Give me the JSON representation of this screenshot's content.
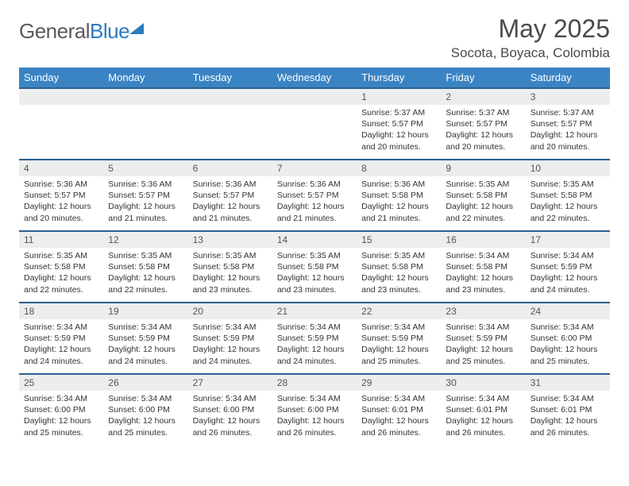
{
  "brand": {
    "part1": "General",
    "part2": "Blue"
  },
  "title": "May 2025",
  "location": "Socota, Boyaca, Colombia",
  "colors": {
    "header_bg": "#3b84c4",
    "border": "#2d5f8e",
    "daynum_bg": "#eceded",
    "brand_blue": "#2b7bbf"
  },
  "weekdays": [
    "Sunday",
    "Monday",
    "Tuesday",
    "Wednesday",
    "Thursday",
    "Friday",
    "Saturday"
  ],
  "weeks": [
    [
      null,
      null,
      null,
      null,
      {
        "n": "1",
        "sr": "5:37 AM",
        "ss": "5:57 PM",
        "dl": "12 hours and 20 minutes."
      },
      {
        "n": "2",
        "sr": "5:37 AM",
        "ss": "5:57 PM",
        "dl": "12 hours and 20 minutes."
      },
      {
        "n": "3",
        "sr": "5:37 AM",
        "ss": "5:57 PM",
        "dl": "12 hours and 20 minutes."
      }
    ],
    [
      {
        "n": "4",
        "sr": "5:36 AM",
        "ss": "5:57 PM",
        "dl": "12 hours and 20 minutes."
      },
      {
        "n": "5",
        "sr": "5:36 AM",
        "ss": "5:57 PM",
        "dl": "12 hours and 21 minutes."
      },
      {
        "n": "6",
        "sr": "5:36 AM",
        "ss": "5:57 PM",
        "dl": "12 hours and 21 minutes."
      },
      {
        "n": "7",
        "sr": "5:36 AM",
        "ss": "5:57 PM",
        "dl": "12 hours and 21 minutes."
      },
      {
        "n": "8",
        "sr": "5:36 AM",
        "ss": "5:58 PM",
        "dl": "12 hours and 21 minutes."
      },
      {
        "n": "9",
        "sr": "5:35 AM",
        "ss": "5:58 PM",
        "dl": "12 hours and 22 minutes."
      },
      {
        "n": "10",
        "sr": "5:35 AM",
        "ss": "5:58 PM",
        "dl": "12 hours and 22 minutes."
      }
    ],
    [
      {
        "n": "11",
        "sr": "5:35 AM",
        "ss": "5:58 PM",
        "dl": "12 hours and 22 minutes."
      },
      {
        "n": "12",
        "sr": "5:35 AM",
        "ss": "5:58 PM",
        "dl": "12 hours and 22 minutes."
      },
      {
        "n": "13",
        "sr": "5:35 AM",
        "ss": "5:58 PM",
        "dl": "12 hours and 23 minutes."
      },
      {
        "n": "14",
        "sr": "5:35 AM",
        "ss": "5:58 PM",
        "dl": "12 hours and 23 minutes."
      },
      {
        "n": "15",
        "sr": "5:35 AM",
        "ss": "5:58 PM",
        "dl": "12 hours and 23 minutes."
      },
      {
        "n": "16",
        "sr": "5:34 AM",
        "ss": "5:58 PM",
        "dl": "12 hours and 23 minutes."
      },
      {
        "n": "17",
        "sr": "5:34 AM",
        "ss": "5:59 PM",
        "dl": "12 hours and 24 minutes."
      }
    ],
    [
      {
        "n": "18",
        "sr": "5:34 AM",
        "ss": "5:59 PM",
        "dl": "12 hours and 24 minutes."
      },
      {
        "n": "19",
        "sr": "5:34 AM",
        "ss": "5:59 PM",
        "dl": "12 hours and 24 minutes."
      },
      {
        "n": "20",
        "sr": "5:34 AM",
        "ss": "5:59 PM",
        "dl": "12 hours and 24 minutes."
      },
      {
        "n": "21",
        "sr": "5:34 AM",
        "ss": "5:59 PM",
        "dl": "12 hours and 24 minutes."
      },
      {
        "n": "22",
        "sr": "5:34 AM",
        "ss": "5:59 PM",
        "dl": "12 hours and 25 minutes."
      },
      {
        "n": "23",
        "sr": "5:34 AM",
        "ss": "5:59 PM",
        "dl": "12 hours and 25 minutes."
      },
      {
        "n": "24",
        "sr": "5:34 AM",
        "ss": "6:00 PM",
        "dl": "12 hours and 25 minutes."
      }
    ],
    [
      {
        "n": "25",
        "sr": "5:34 AM",
        "ss": "6:00 PM",
        "dl": "12 hours and 25 minutes."
      },
      {
        "n": "26",
        "sr": "5:34 AM",
        "ss": "6:00 PM",
        "dl": "12 hours and 25 minutes."
      },
      {
        "n": "27",
        "sr": "5:34 AM",
        "ss": "6:00 PM",
        "dl": "12 hours and 26 minutes."
      },
      {
        "n": "28",
        "sr": "5:34 AM",
        "ss": "6:00 PM",
        "dl": "12 hours and 26 minutes."
      },
      {
        "n": "29",
        "sr": "5:34 AM",
        "ss": "6:01 PM",
        "dl": "12 hours and 26 minutes."
      },
      {
        "n": "30",
        "sr": "5:34 AM",
        "ss": "6:01 PM",
        "dl": "12 hours and 26 minutes."
      },
      {
        "n": "31",
        "sr": "5:34 AM",
        "ss": "6:01 PM",
        "dl": "12 hours and 26 minutes."
      }
    ]
  ],
  "labels": {
    "sunrise": "Sunrise: ",
    "sunset": "Sunset: ",
    "daylight": "Daylight: "
  }
}
